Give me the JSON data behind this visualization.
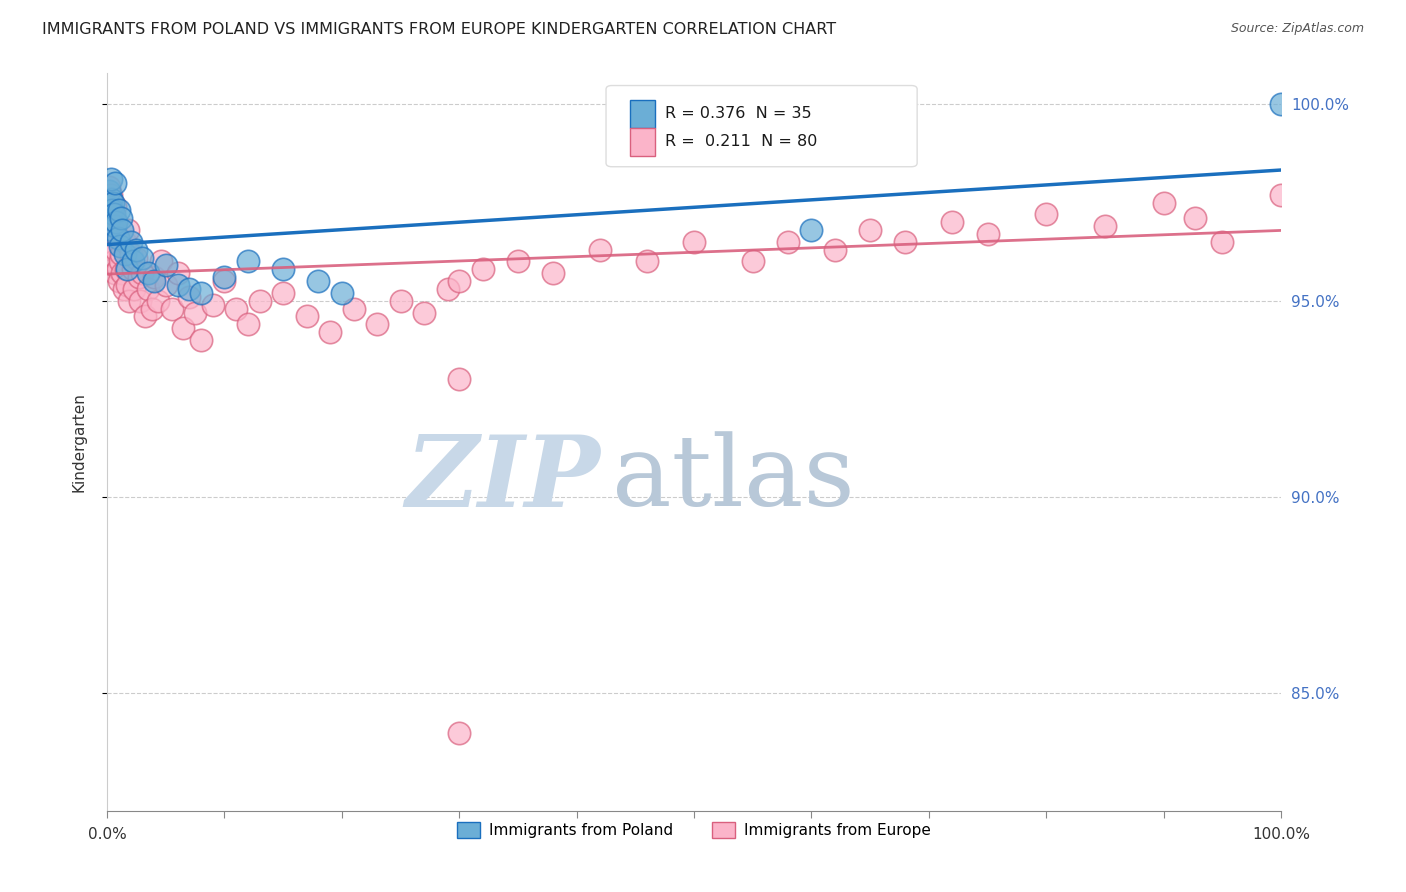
{
  "title": "IMMIGRANTS FROM POLAND VS IMMIGRANTS FROM EUROPE KINDERGARTEN CORRELATION CHART",
  "source": "Source: ZipAtlas.com",
  "ylabel": "Kindergarten",
  "ytick_labels": [
    "100.0%",
    "95.0%",
    "90.0%",
    "85.0%"
  ],
  "ytick_values": [
    1.0,
    0.95,
    0.9,
    0.85
  ],
  "legend1_label": "Immigrants from Poland",
  "legend2_label": "Immigrants from Europe",
  "R_poland": 0.376,
  "N_poland": 35,
  "R_europe": 0.211,
  "N_europe": 80,
  "color_poland": "#6baed6",
  "color_europe": "#fbb4c9",
  "trendline_poland": "#1a6fbe",
  "trendline_europe": "#d9607e",
  "poland_x": [
    0.001,
    0.002,
    0.003,
    0.003,
    0.004,
    0.005,
    0.005,
    0.006,
    0.007,
    0.007,
    0.008,
    0.009,
    0.01,
    0.011,
    0.012,
    0.013,
    0.015,
    0.017,
    0.02,
    0.022,
    0.025,
    0.03,
    0.035,
    0.04,
    0.05,
    0.06,
    0.07,
    0.08,
    0.1,
    0.12,
    0.15,
    0.18,
    0.2,
    0.6,
    1.0
  ],
  "poland_y": [
    0.974,
    0.978,
    0.976,
    0.981,
    0.973,
    0.968,
    0.975,
    0.972,
    0.969,
    0.98,
    0.97,
    0.966,
    0.973,
    0.964,
    0.971,
    0.968,
    0.962,
    0.958,
    0.965,
    0.96,
    0.963,
    0.961,
    0.957,
    0.955,
    0.959,
    0.954,
    0.953,
    0.952,
    0.956,
    0.96,
    0.958,
    0.955,
    0.952,
    0.968,
    1.0
  ],
  "europe_x": [
    0.001,
    0.002,
    0.002,
    0.003,
    0.003,
    0.004,
    0.004,
    0.005,
    0.005,
    0.006,
    0.006,
    0.007,
    0.007,
    0.008,
    0.008,
    0.009,
    0.01,
    0.01,
    0.011,
    0.012,
    0.013,
    0.014,
    0.015,
    0.016,
    0.017,
    0.018,
    0.019,
    0.02,
    0.022,
    0.023,
    0.025,
    0.027,
    0.028,
    0.03,
    0.032,
    0.035,
    0.038,
    0.04,
    0.043,
    0.046,
    0.05,
    0.055,
    0.06,
    0.065,
    0.07,
    0.075,
    0.08,
    0.09,
    0.1,
    0.11,
    0.12,
    0.13,
    0.15,
    0.17,
    0.19,
    0.21,
    0.23,
    0.25,
    0.27,
    0.29,
    0.3,
    0.32,
    0.35,
    0.38,
    0.42,
    0.46,
    0.5,
    0.55,
    0.58,
    0.62,
    0.65,
    0.68,
    0.72,
    0.75,
    0.8,
    0.85,
    0.9,
    0.927,
    0.95,
    1.0
  ],
  "europe_y": [
    0.975,
    0.979,
    0.972,
    0.977,
    0.968,
    0.973,
    0.965,
    0.97,
    0.963,
    0.967,
    0.96,
    0.974,
    0.957,
    0.963,
    0.97,
    0.958,
    0.966,
    0.955,
    0.96,
    0.962,
    0.957,
    0.953,
    0.965,
    0.958,
    0.954,
    0.968,
    0.95,
    0.962,
    0.958,
    0.953,
    0.961,
    0.956,
    0.95,
    0.957,
    0.946,
    0.953,
    0.948,
    0.956,
    0.95,
    0.96,
    0.954,
    0.948,
    0.957,
    0.943,
    0.951,
    0.947,
    0.94,
    0.949,
    0.955,
    0.948,
    0.944,
    0.95,
    0.952,
    0.946,
    0.942,
    0.948,
    0.944,
    0.95,
    0.947,
    0.953,
    0.955,
    0.958,
    0.96,
    0.957,
    0.963,
    0.96,
    0.965,
    0.96,
    0.965,
    0.963,
    0.968,
    0.965,
    0.97,
    0.967,
    0.972,
    0.969,
    0.975,
    0.971,
    0.965,
    0.977
  ],
  "europe_outlier_x": [
    0.3
  ],
  "europe_outlier_y": [
    0.93
  ],
  "europe_outlier2_x": [
    0.3
  ],
  "europe_outlier2_y": [
    0.84
  ],
  "xlim": [
    0.0,
    1.0
  ],
  "ylim": [
    0.82,
    1.008
  ],
  "background_color": "#ffffff",
  "watermark_zip": "ZIP",
  "watermark_atlas": "atlas",
  "watermark_color_zip": "#c8d8e8",
  "watermark_color_atlas": "#b8c8d8"
}
